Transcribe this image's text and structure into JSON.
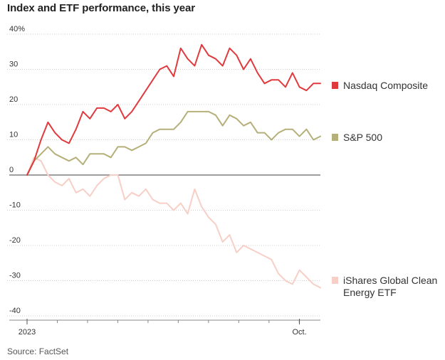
{
  "title": "Index and ETF performance, this year",
  "source": "Source: FactSet",
  "chart_data": {
    "type": "line",
    "title": "Index and ETF performance, this year",
    "xlabel": "",
    "ylabel": "",
    "ylim": [
      -40,
      40
    ],
    "yticks": [
      40,
      30,
      20,
      10,
      0,
      -10,
      -20,
      -30,
      -40
    ],
    "ytick_labels": [
      "40%",
      "30",
      "20",
      "10",
      "0",
      "-10",
      "-20",
      "-30",
      "-40"
    ],
    "xlim": [
      1,
      43
    ],
    "xticks": [
      1,
      40
    ],
    "xtick_labels": [
      "2023",
      "Oct."
    ],
    "x_unit": "week of 2023",
    "grid": true,
    "legend_position": "right",
    "series": [
      {
        "name": "Nasdaq Composite",
        "color": "#e03a3e",
        "x": [
          1,
          2,
          3,
          4,
          5,
          6,
          7,
          8,
          9,
          10,
          11,
          12,
          13,
          14,
          15,
          16,
          17,
          18,
          19,
          20,
          21,
          22,
          23,
          24,
          25,
          26,
          27,
          28,
          29,
          30,
          31,
          32,
          33,
          34,
          35,
          36,
          37,
          38,
          39,
          40,
          41,
          42,
          43
        ],
        "values": [
          0,
          4,
          10,
          15,
          12,
          10,
          9,
          13,
          18,
          16,
          19,
          19,
          18,
          20,
          16,
          18,
          21,
          24,
          27,
          30,
          31,
          28,
          36,
          33,
          31,
          37,
          34,
          33,
          31,
          36,
          34,
          30,
          33,
          29,
          26,
          27,
          27,
          25,
          29,
          25,
          24,
          26,
          26
        ]
      },
      {
        "name": "S&P 500",
        "color": "#b5b07a",
        "x": [
          1,
          2,
          3,
          4,
          5,
          6,
          7,
          8,
          9,
          10,
          11,
          12,
          13,
          14,
          15,
          16,
          17,
          18,
          19,
          20,
          21,
          22,
          23,
          24,
          25,
          26,
          27,
          28,
          29,
          30,
          31,
          32,
          33,
          34,
          35,
          36,
          37,
          38,
          39,
          40,
          41,
          42,
          43
        ],
        "values": [
          0,
          4,
          6,
          8,
          6,
          5,
          4,
          5,
          3,
          6,
          6,
          6,
          5,
          8,
          8,
          7,
          8,
          9,
          12,
          13,
          13,
          13,
          15,
          18,
          18,
          18,
          18,
          17,
          14,
          17,
          16,
          14,
          15,
          12,
          12,
          10,
          12,
          13,
          13,
          11,
          13,
          10,
          11
        ]
      },
      {
        "name": "iShares Global Clean Energy ETF",
        "color": "#f7cfc6",
        "x": [
          1,
          2,
          3,
          4,
          5,
          6,
          7,
          8,
          9,
          10,
          11,
          12,
          13,
          14,
          15,
          16,
          17,
          18,
          19,
          20,
          21,
          22,
          23,
          24,
          25,
          26,
          27,
          28,
          29,
          30,
          31,
          32,
          33,
          34,
          35,
          36,
          37,
          38,
          39,
          40,
          41,
          42,
          43
        ],
        "values": [
          0,
          5,
          4,
          0,
          -2,
          -3,
          -1,
          -5,
          -4,
          -6,
          -3,
          -1,
          0,
          0,
          -7,
          -5,
          -6,
          -4,
          -7,
          -8,
          -8,
          -10,
          -8,
          -11,
          -4,
          -9,
          -12,
          -14,
          -19,
          -17,
          -22,
          -20,
          -21,
          -22,
          -23,
          -24,
          -28,
          -30,
          -31,
          -27,
          -29,
          -31,
          -32
        ]
      }
    ]
  }
}
